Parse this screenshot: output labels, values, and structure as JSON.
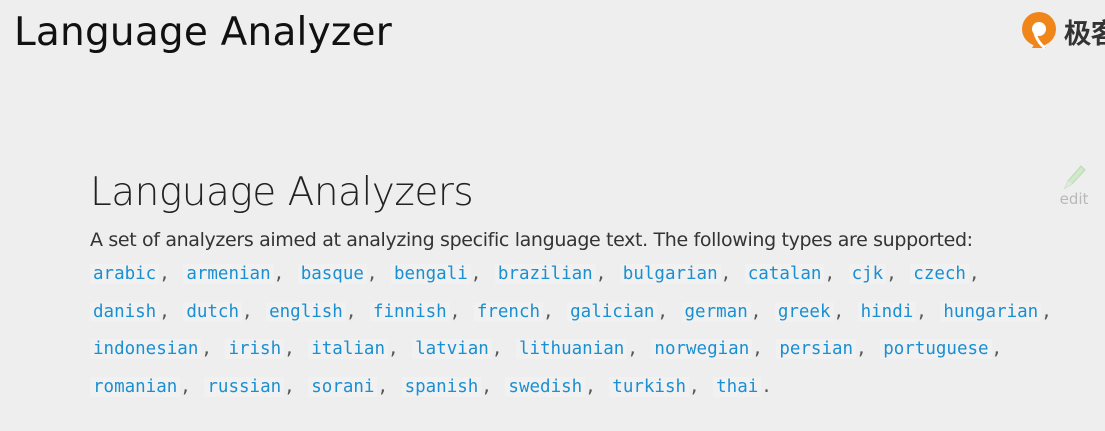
{
  "slide": {
    "title": "Language Analyzer"
  },
  "brand": {
    "text": "极客",
    "accent": "#f08519"
  },
  "doc": {
    "title": "Language Analyzers",
    "description": "A set of analyzers aimed at analyzing specific language text. The following types are supported:",
    "edit_label": "edit",
    "edit_icon": "pencil-icon",
    "link_color": "#1a8fd1",
    "languages": [
      "arabic",
      "armenian",
      "basque",
      "bengali",
      "brazilian",
      "bulgarian",
      "catalan",
      "cjk",
      "czech",
      "danish",
      "dutch",
      "english",
      "finnish",
      "french",
      "galician",
      "german",
      "greek",
      "hindi",
      "hungarian",
      "indonesian",
      "irish",
      "italian",
      "latvian",
      "lithuanian",
      "norwegian",
      "persian",
      "portuguese",
      "romanian",
      "russian",
      "sorani",
      "spanish",
      "swedish",
      "turkish",
      "thai"
    ],
    "separator": ",",
    "terminator": "."
  }
}
